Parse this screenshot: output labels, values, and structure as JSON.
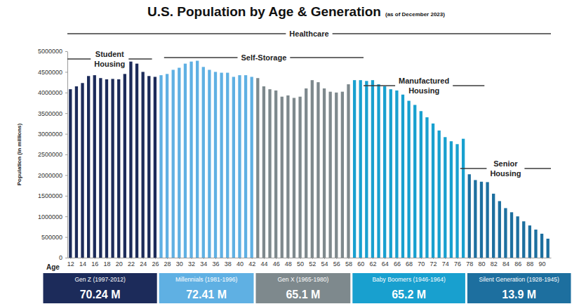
{
  "chart_data": {
    "type": "bar",
    "title": "U.S. Population by Age & Generation",
    "subtitle": "(as of December 2023)",
    "y_label": "Population (in millions)",
    "x_label": "Age",
    "x": [
      12,
      13,
      14,
      15,
      16,
      17,
      18,
      19,
      20,
      21,
      22,
      23,
      24,
      25,
      26,
      27,
      28,
      29,
      30,
      31,
      32,
      33,
      34,
      35,
      36,
      37,
      38,
      39,
      40,
      41,
      42,
      43,
      44,
      45,
      46,
      47,
      48,
      49,
      50,
      51,
      52,
      53,
      54,
      55,
      56,
      57,
      58,
      59,
      60,
      61,
      62,
      63,
      64,
      65,
      66,
      67,
      68,
      69,
      70,
      71,
      72,
      73,
      74,
      75,
      76,
      77,
      78,
      79,
      80,
      81,
      82,
      83,
      84,
      85,
      86,
      87,
      88,
      89,
      90,
      91
    ],
    "values": [
      4080000,
      4150000,
      4230000,
      4400000,
      4420000,
      4350000,
      4320000,
      4330000,
      4320000,
      4450000,
      4750000,
      4700000,
      4500000,
      4400000,
      4380000,
      4420000,
      4450000,
      4550000,
      4600000,
      4700000,
      4750000,
      4770000,
      4620000,
      4550000,
      4500000,
      4480000,
      4480000,
      4380000,
      4420000,
      4420000,
      4380000,
      4350000,
      4150000,
      4080000,
      4050000,
      3900000,
      3930000,
      3870000,
      3900000,
      4100000,
      4300000,
      4250000,
      4100000,
      4020000,
      4000000,
      4020000,
      4200000,
      4300000,
      4300000,
      4280000,
      4300000,
      4200000,
      4150000,
      4080000,
      4050000,
      3950000,
      3800000,
      3700000,
      3550000,
      3400000,
      3250000,
      3080000,
      2920000,
      2820000,
      2750000,
      2880000,
      2020000,
      1880000,
      1840000,
      1830000,
      1550000,
      1370000,
      1200000,
      1100000,
      1000000,
      880000,
      780000,
      680000,
      580000,
      460000
    ],
    "colors": [
      "#1c2b5a",
      "#1c2b5a",
      "#1c2b5a",
      "#1c2b5a",
      "#1c2b5a",
      "#1c2b5a",
      "#1c2b5a",
      "#1c2b5a",
      "#1c2b5a",
      "#1c2b5a",
      "#1c2b5a",
      "#1c2b5a",
      "#1c2b5a",
      "#1c2b5a",
      "#1c2b5a",
      "#5fb0e3",
      "#5fb0e3",
      "#5fb0e3",
      "#5fb0e3",
      "#5fb0e3",
      "#5fb0e3",
      "#5fb0e3",
      "#5fb0e3",
      "#5fb0e3",
      "#5fb0e3",
      "#5fb0e3",
      "#5fb0e3",
      "#5fb0e3",
      "#5fb0e3",
      "#5fb0e3",
      "#5fb0e3",
      "#7e898d",
      "#7e898d",
      "#7e898d",
      "#7e898d",
      "#7e898d",
      "#7e898d",
      "#7e898d",
      "#7e898d",
      "#7e898d",
      "#7e898d",
      "#7e898d",
      "#7e898d",
      "#7e898d",
      "#7e898d",
      "#7e898d",
      "#7e898d",
      "#18a0cf",
      "#18a0cf",
      "#18a0cf",
      "#18a0cf",
      "#18a0cf",
      "#18a0cf",
      "#18a0cf",
      "#18a0cf",
      "#18a0cf",
      "#18a0cf",
      "#18a0cf",
      "#18a0cf",
      "#18a0cf",
      "#18a0cf",
      "#18a0cf",
      "#18a0cf",
      "#18a0cf",
      "#18a0cf",
      "#18a0cf",
      "#1d6f9f",
      "#1d6f9f",
      "#1d6f9f",
      "#1d6f9f",
      "#1d6f9f",
      "#1d6f9f",
      "#1d6f9f",
      "#1d6f9f",
      "#1d6f9f",
      "#1d6f9f",
      "#1d6f9f",
      "#1d6f9f",
      "#1d6f9f",
      "#1d6f9f"
    ],
    "xlim": [
      11.5,
      91.5
    ],
    "xticks": [
      12,
      14,
      16,
      18,
      20,
      22,
      24,
      26,
      28,
      30,
      32,
      34,
      36,
      38,
      40,
      42,
      44,
      46,
      48,
      50,
      52,
      54,
      56,
      58,
      60,
      62,
      64,
      66,
      68,
      70,
      72,
      74,
      76,
      78,
      80,
      82,
      84,
      86,
      88,
      90
    ],
    "ylim": [
      0,
      5000000
    ],
    "yticks": [
      0,
      500000,
      1000000,
      1500000,
      2000000,
      2500000,
      3000000,
      3500000,
      4000000,
      4500000,
      5000000
    ],
    "grid": false,
    "annotations": [
      {
        "label": "Healthcare",
        "start": 12,
        "end": 91
      },
      {
        "label": "Student Housing",
        "start": 12,
        "end": 25
      },
      {
        "label": "Self-Storage",
        "start": 28,
        "end": 60
      },
      {
        "label": "Manufactured Housing",
        "start": 61,
        "end": 80
      },
      {
        "label": "Senior Housing",
        "start": 77,
        "end": 91
      }
    ],
    "generations": [
      {
        "name": "Gen Z (1997-2012)",
        "total": "70.24 M",
        "color": "#1c2b5a"
      },
      {
        "name": "Millennials (1981-1996)",
        "total": "72.41 M",
        "color": "#5fb0e3"
      },
      {
        "name": "Gen X (1965-1980)",
        "total": "65.1 M",
        "color": "#7e898d"
      },
      {
        "name": "Baby Boomers (1946-1964)",
        "total": "65.2 M",
        "color": "#18a0cf"
      },
      {
        "name": "Silent Generation (1928-1945)",
        "total": "13.9 M",
        "color": "#1d6f9f"
      }
    ]
  }
}
